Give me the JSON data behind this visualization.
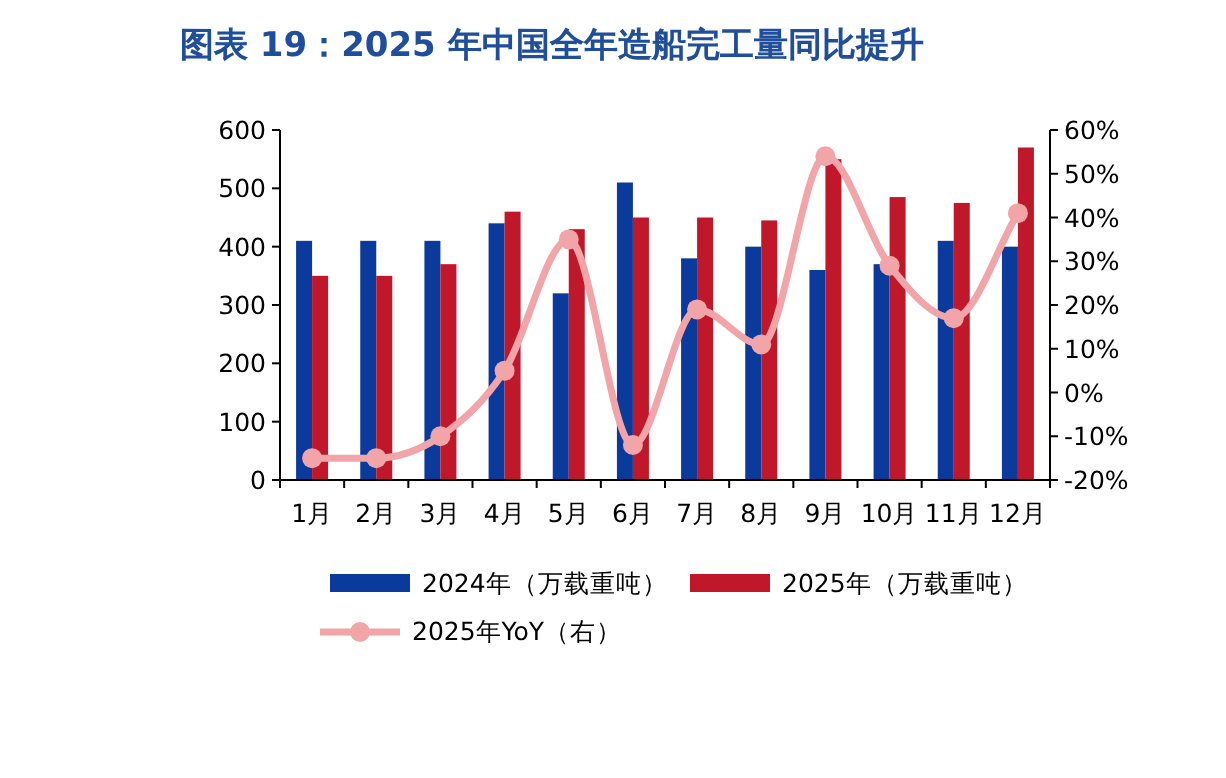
{
  "chart_data": {
    "type": "bar",
    "title": "图表 19：2025 年中国全年造船完工量同比提升",
    "categories": [
      "1月",
      "2月",
      "3月",
      "4月",
      "5月",
      "6月",
      "7月",
      "8月",
      "9月",
      "10月",
      "11月",
      "12月"
    ],
    "series": [
      {
        "name": "2024年（万载重吨）",
        "color": "#0a3a9c",
        "values": [
          410,
          410,
          410,
          440,
          320,
          510,
          380,
          400,
          360,
          370,
          410,
          400
        ]
      },
      {
        "name": "2025年（万载重吨）",
        "color": "#c0182a",
        "values": [
          350,
          350,
          370,
          460,
          430,
          450,
          450,
          445,
          550,
          485,
          475,
          570
        ]
      },
      {
        "name": "2025年YoY（右）",
        "type": "line",
        "axis": "y2",
        "color": "#f2a5a8",
        "marker": "circle",
        "values": [
          -15,
          -15,
          -10,
          5,
          35,
          -12,
          19,
          11,
          54,
          29,
          17,
          41
        ]
      }
    ],
    "ylim": [
      0,
      600
    ],
    "yticks": [
      0,
      100,
      200,
      300,
      400,
      500,
      600
    ],
    "y2lim": [
      -20,
      60
    ],
    "y2ticks": [
      {
        "value": -20,
        "label": "-20%"
      },
      {
        "value": -10,
        "label": "-10%"
      },
      {
        "value": 0,
        "label": "0%"
      },
      {
        "value": 10,
        "label": "10%"
      },
      {
        "value": 20,
        "label": "20%"
      },
      {
        "value": 30,
        "label": "30%"
      },
      {
        "value": 40,
        "label": "40%"
      },
      {
        "value": 50,
        "label": "50%"
      },
      {
        "value": 60,
        "label": "60%"
      }
    ],
    "grid": false,
    "legend": "bottom"
  }
}
